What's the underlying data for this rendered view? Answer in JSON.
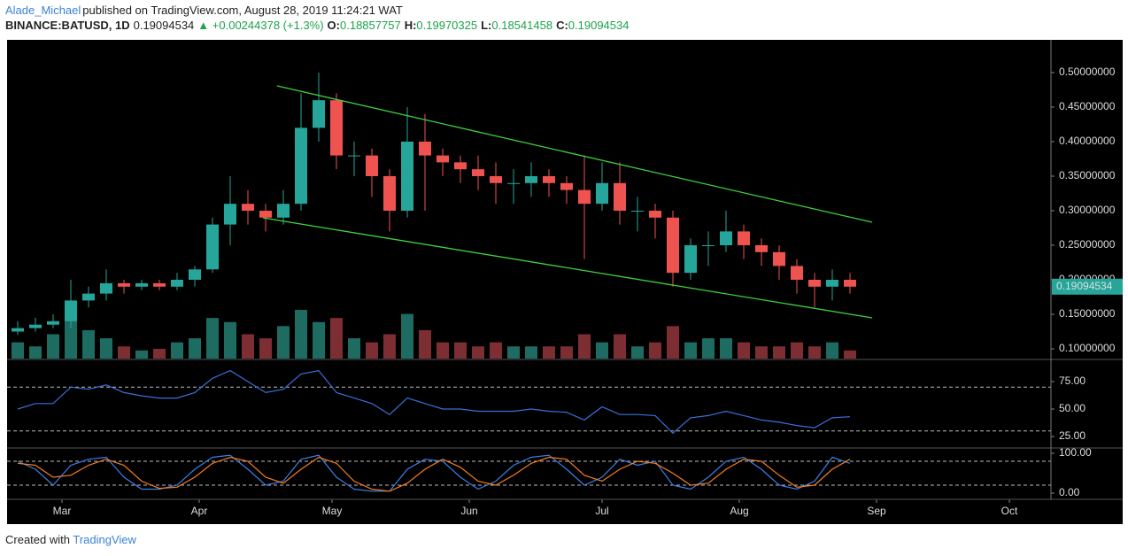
{
  "header": {
    "author": "Alade_Michael",
    "published": "published on TradingView.com, August 28, 2019 11:24:21 WAT",
    "symbol": "BINANCE:BATUSD, 1D",
    "price": "0.19094534",
    "change": "▲ +0.00244378 (+1.3%)",
    "ohlc": [
      {
        "label": "O:",
        "value": "0.18857757"
      },
      {
        "label": "H:",
        "value": "0.19970325"
      },
      {
        "label": "L:",
        "value": "0.18541458"
      },
      {
        "label": "C:",
        "value": "0.19094534"
      }
    ]
  },
  "footer": {
    "text": "Created with",
    "brand": "TradingView"
  },
  "chart_data": [
    {
      "type": "candlestick",
      "up_color": "#26a69a",
      "down_color": "#ef5350",
      "volume_up_color": "#1d6b61",
      "volume_down_color": "#7d2e32",
      "trend_color": "#3fd13f",
      "x": [
        -10,
        -6,
        -2,
        2,
        6,
        10,
        14,
        18,
        22,
        26,
        30,
        34,
        38,
        42,
        46,
        50,
        54,
        58,
        62,
        66,
        70,
        74,
        78,
        82,
        86,
        90,
        94,
        98,
        102,
        106,
        110,
        114,
        118,
        122,
        126,
        130,
        134,
        138,
        142,
        146,
        150,
        154,
        158,
        162,
        166,
        170,
        174,
        178
      ],
      "open": [
        0.125,
        0.13,
        0.135,
        0.14,
        0.17,
        0.18,
        0.195,
        0.19,
        0.195,
        0.19,
        0.2,
        0.215,
        0.28,
        0.31,
        0.3,
        0.29,
        0.31,
        0.42,
        0.46,
        0.38,
        0.38,
        0.35,
        0.3,
        0.4,
        0.38,
        0.37,
        0.36,
        0.35,
        0.34,
        0.34,
        0.35,
        0.34,
        0.33,
        0.31,
        0.34,
        0.3,
        0.3,
        0.29,
        0.21,
        0.25,
        0.25,
        0.27,
        0.25,
        0.24,
        0.22,
        0.2,
        0.19,
        0.2
      ],
      "high": [
        0.14,
        0.145,
        0.15,
        0.2,
        0.19,
        0.215,
        0.2,
        0.2,
        0.2,
        0.21,
        0.22,
        0.29,
        0.35,
        0.33,
        0.31,
        0.33,
        0.47,
        0.5,
        0.47,
        0.4,
        0.39,
        0.36,
        0.45,
        0.44,
        0.39,
        0.38,
        0.38,
        0.37,
        0.36,
        0.37,
        0.36,
        0.35,
        0.38,
        0.37,
        0.37,
        0.32,
        0.31,
        0.3,
        0.26,
        0.27,
        0.3,
        0.28,
        0.26,
        0.25,
        0.23,
        0.21,
        0.215,
        0.21
      ],
      "low": [
        0.12,
        0.125,
        0.13,
        0.13,
        0.16,
        0.17,
        0.18,
        0.185,
        0.185,
        0.185,
        0.19,
        0.21,
        0.25,
        0.28,
        0.27,
        0.28,
        0.3,
        0.4,
        0.36,
        0.35,
        0.32,
        0.27,
        0.29,
        0.3,
        0.35,
        0.34,
        0.33,
        0.31,
        0.31,
        0.32,
        0.32,
        0.31,
        0.23,
        0.3,
        0.28,
        0.27,
        0.26,
        0.19,
        0.2,
        0.22,
        0.24,
        0.23,
        0.22,
        0.2,
        0.18,
        0.16,
        0.17,
        0.18
      ],
      "close": [
        0.13,
        0.135,
        0.14,
        0.17,
        0.18,
        0.195,
        0.19,
        0.195,
        0.19,
        0.2,
        0.215,
        0.28,
        0.31,
        0.3,
        0.29,
        0.31,
        0.42,
        0.46,
        0.38,
        0.38,
        0.35,
        0.3,
        0.4,
        0.38,
        0.37,
        0.36,
        0.35,
        0.34,
        0.34,
        0.35,
        0.34,
        0.33,
        0.31,
        0.34,
        0.3,
        0.3,
        0.29,
        0.21,
        0.25,
        0.25,
        0.27,
        0.25,
        0.24,
        0.22,
        0.2,
        0.19,
        0.2,
        0.19
      ],
      "volume": [
        20,
        15,
        30,
        60,
        35,
        25,
        15,
        10,
        12,
        20,
        25,
        50,
        45,
        30,
        25,
        40,
        60,
        45,
        50,
        25,
        20,
        30,
        55,
        35,
        20,
        20,
        15,
        20,
        15,
        15,
        15,
        15,
        30,
        20,
        30,
        15,
        20,
        40,
        20,
        25,
        25,
        20,
        15,
        15,
        20,
        15,
        20,
        10
      ],
      "trend_lines": [
        {
          "x": [
            48.6,
            183
          ],
          "y": [
            0.4808,
            0.2833
          ]
        },
        {
          "x": [
            45.4,
            183
          ],
          "y": [
            0.2897,
            0.1449
          ]
        }
      ],
      "xlim": [
        -12.4,
        223.4
      ],
      "xticks": [
        {
          "value": 0,
          "label": "Mar"
        },
        {
          "value": 31,
          "label": "Apr"
        },
        {
          "value": 61,
          "label": "May"
        },
        {
          "value": 92,
          "label": "Jun"
        },
        {
          "value": 122,
          "label": "Jul"
        },
        {
          "value": 153,
          "label": "Aug"
        },
        {
          "value": 184,
          "label": "Sep"
        },
        {
          "value": 214,
          "label": "Oct"
        }
      ],
      "ylim": [
        0.0859,
        0.5474
      ],
      "yticks": [
        {
          "value": 0.1,
          "label": "0.10000000"
        },
        {
          "value": 0.15,
          "label": "0.15000000"
        },
        {
          "value": 0.2,
          "label": "0.20000000"
        },
        {
          "value": 0.25,
          "label": "0.25000000"
        },
        {
          "value": 0.3,
          "label": "0.30000000"
        },
        {
          "value": 0.35,
          "label": "0.35000000"
        },
        {
          "value": 0.4,
          "label": "0.40000000"
        },
        {
          "value": 0.45,
          "label": "0.45000000"
        },
        {
          "value": 0.5,
          "label": "0.50000000"
        }
      ]
    },
    {
      "type": "line",
      "x": [
        -10,
        -6,
        -2,
        2,
        6,
        10,
        14,
        18,
        22,
        26,
        30,
        34,
        38,
        42,
        46,
        50,
        54,
        58,
        62,
        66,
        70,
        74,
        78,
        82,
        86,
        90,
        94,
        98,
        102,
        106,
        110,
        114,
        118,
        122,
        126,
        130,
        134,
        138,
        142,
        146,
        150,
        154,
        158,
        162,
        166,
        170,
        174,
        178
      ],
      "series": [
        {
          "color": "#3a6fd8",
          "values": [
            50,
            55,
            55,
            70,
            68,
            72,
            65,
            62,
            60,
            60,
            65,
            78,
            85,
            75,
            65,
            68,
            82,
            85,
            65,
            60,
            55,
            45,
            60,
            55,
            50,
            50,
            48,
            48,
            48,
            50,
            48,
            47,
            40,
            52,
            45,
            45,
            44,
            28,
            42,
            44,
            48,
            44,
            40,
            38,
            35,
            33,
            42,
            43
          ]
        }
      ],
      "levels": [
        30,
        70
      ],
      "xlim": [
        -12.4,
        223.4
      ],
      "ylim": [
        15.3,
        94.4
      ],
      "yticks": [
        {
          "value": 25,
          "label": "25.00"
        },
        {
          "value": 50,
          "label": "50.00"
        },
        {
          "value": 75,
          "label": "75.00"
        }
      ]
    },
    {
      "type": "line",
      "x": [
        -10,
        -6,
        -2,
        2,
        6,
        10,
        14,
        18,
        22,
        26,
        30,
        34,
        38,
        42,
        46,
        50,
        54,
        58,
        62,
        66,
        70,
        74,
        78,
        82,
        86,
        90,
        94,
        98,
        102,
        106,
        110,
        114,
        118,
        122,
        126,
        130,
        134,
        138,
        142,
        146,
        150,
        154,
        158,
        162,
        166,
        170,
        174,
        178
      ],
      "series": [
        {
          "color": "#3a7ee8",
          "values": [
            80,
            60,
            20,
            70,
            85,
            90,
            40,
            10,
            10,
            20,
            60,
            90,
            95,
            60,
            20,
            30,
            85,
            95,
            40,
            10,
            5,
            5,
            60,
            85,
            80,
            40,
            10,
            30,
            70,
            90,
            95,
            60,
            20,
            40,
            85,
            70,
            80,
            20,
            10,
            40,
            80,
            90,
            60,
            20,
            10,
            30,
            90,
            75
          ]
        },
        {
          "color": "#f57c1f",
          "values": [
            75,
            70,
            40,
            45,
            70,
            85,
            70,
            30,
            12,
            15,
            40,
            75,
            90,
            80,
            40,
            25,
            60,
            90,
            75,
            30,
            10,
            5,
            25,
            60,
            85,
            65,
            30,
            20,
            45,
            75,
            90,
            85,
            45,
            30,
            60,
            80,
            75,
            50,
            20,
            25,
            60,
            85,
            80,
            45,
            15,
            20,
            60,
            85
          ]
        }
      ],
      "levels": [
        20,
        80
      ],
      "xlim": [
        -12.4,
        223.4
      ],
      "ylim": [
        -13.3,
        111.1
      ],
      "yticks": [
        {
          "value": 0,
          "label": "0.00"
        },
        {
          "value": 100,
          "label": "100.00"
        }
      ]
    }
  ]
}
